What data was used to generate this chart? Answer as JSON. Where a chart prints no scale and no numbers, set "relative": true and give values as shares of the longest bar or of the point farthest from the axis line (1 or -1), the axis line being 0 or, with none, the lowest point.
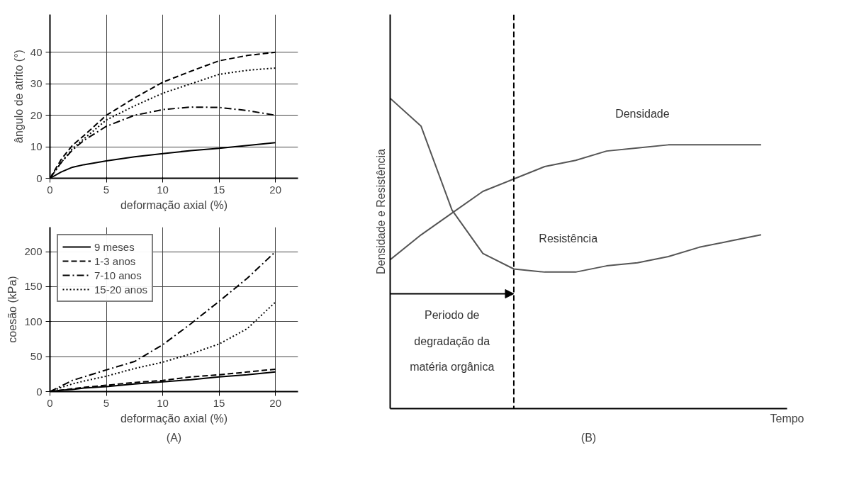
{
  "chart_data": [
    {
      "type": "line",
      "xlabel": "deformação axial (%)",
      "ylabel": "ângulo de atrito (°)",
      "x": [
        0,
        1,
        2,
        3,
        5,
        7.5,
        10,
        12.5,
        15,
        17.5,
        20
      ],
      "xlim": [
        0,
        22
      ],
      "ylim": [
        0,
        52
      ],
      "xticks": [
        0,
        5,
        10,
        15,
        20
      ],
      "yticks": [
        0,
        10,
        20,
        30,
        40
      ],
      "grid": true,
      "series": [
        {
          "color": "#000000",
          "line_style": "solid",
          "values": [
            0,
            2,
            3.5,
            4.3,
            5.5,
            6.8,
            7.8,
            8.8,
            9.5,
            10.4,
            11.3
          ]
        },
        {
          "color": "#000000",
          "line_style": "dashed",
          "values": [
            0,
            6,
            10.5,
            13.5,
            20,
            25.5,
            30.5,
            34,
            37.3,
            39,
            40
          ]
        },
        {
          "color": "#000000",
          "line_style": "dashdot",
          "values": [
            0,
            5,
            9,
            12,
            16.5,
            20,
            21.8,
            22.6,
            22.5,
            21.5,
            20
          ]
        },
        {
          "color": "#000000",
          "line_style": "dotted",
          "values": [
            0,
            5,
            9.5,
            12.5,
            18.5,
            23,
            27,
            30,
            33,
            34.3,
            35
          ]
        }
      ]
    },
    {
      "type": "line",
      "xlabel": "deformação axial (%)",
      "ylabel": "coesão (kPa)",
      "x": [
        0,
        1,
        2,
        3,
        5,
        7.5,
        10,
        12.5,
        15,
        17.5,
        20
      ],
      "xlim": [
        0,
        22
      ],
      "ylim": [
        0,
        235
      ],
      "xticks": [
        0,
        5,
        10,
        15,
        20
      ],
      "yticks": [
        0,
        50,
        100,
        150,
        200
      ],
      "grid": true,
      "legend": "top left",
      "annotations": [
        "(A)"
      ],
      "series": [
        {
          "name": "9 meses",
          "color": "#000000",
          "line_style": "solid",
          "values": [
            0,
            2,
            3,
            5,
            7,
            11,
            14,
            17,
            21,
            24,
            28
          ]
        },
        {
          "name": "1-3 anos",
          "color": "#000000",
          "line_style": "dashed",
          "values": [
            0,
            2,
            4,
            6,
            9,
            13,
            16,
            21,
            24,
            28,
            32
          ]
        },
        {
          "name": "7-10 anos",
          "color": "#000000",
          "line_style": "dashdot",
          "values": [
            0,
            8,
            16,
            21,
            31,
            43,
            67,
            97,
            129,
            162,
            200
          ]
        },
        {
          "name": "15-20 anos",
          "color": "#000000",
          "line_style": "dotted",
          "values": [
            0,
            6,
            11,
            15,
            22,
            33,
            42,
            54,
            68,
            90,
            128
          ]
        }
      ]
    },
    {
      "type": "line",
      "relative": true,
      "xlabel": "Tempo",
      "ylabel": "Densidade e Resistência",
      "categories": [
        null,
        null,
        null,
        null,
        null,
        null,
        null,
        null,
        null,
        null,
        null,
        null,
        null
      ],
      "annotations": [
        "Periodo de\ndegradação da\nmatéria orgânica",
        "(B)"
      ],
      "ref_lines": [
        {
          "axis": "x",
          "line_style": "dashed"
        }
      ],
      "series": [
        {
          "name": "Densidade",
          "color": "#555555",
          "values": [
            0.48,
            0.56,
            0.63,
            0.7,
            0.74,
            0.78,
            0.8,
            0.83,
            0.84,
            0.85,
            0.85,
            0.85,
            0.85
          ]
        },
        {
          "name": "Resistência",
          "color": "#555555",
          "values": [
            1.0,
            0.91,
            0.64,
            0.5,
            0.45,
            0.44,
            0.44,
            0.46,
            0.47,
            0.49,
            0.52,
            0.54,
            0.56
          ]
        }
      ]
    }
  ]
}
